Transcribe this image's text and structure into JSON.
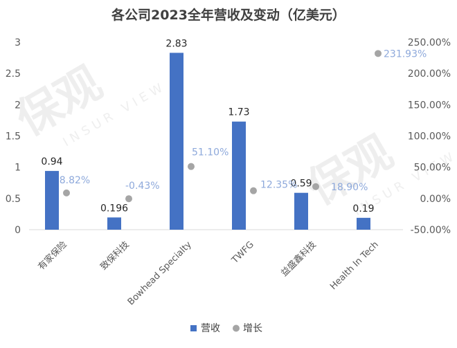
{
  "chart_data": {
    "type": "bar",
    "title": "各公司2023全年营收及变动（亿美元）",
    "categories": [
      "有家保险",
      "致保科技",
      "Bowhead Specialty",
      "TWFG",
      "益盛鑫科技",
      "Health In Tech"
    ],
    "series": [
      {
        "name": "营收",
        "type": "bar",
        "axis": "left",
        "color": "#4472C4",
        "values": [
          0.94,
          0.196,
          2.83,
          1.73,
          0.59,
          0.19
        ],
        "labels": [
          "0.94",
          "0.196",
          "2.83",
          "1.73",
          "0.59",
          "0.19"
        ]
      },
      {
        "name": "增长",
        "type": "scatter",
        "axis": "right",
        "color": "#A5A5A5",
        "values": [
          8.82,
          -0.43,
          51.1,
          12.35,
          18.9,
          231.93
        ],
        "labels": [
          "8.82%",
          "-0.43%",
          "51.10%",
          "12.35%",
          "18.90%",
          "231.93%"
        ],
        "label_color": "#8EA9DB"
      }
    ],
    "y_left": {
      "ylim": [
        0,
        3
      ],
      "ticks": [
        0,
        0.5,
        1,
        1.5,
        2,
        2.5,
        3
      ],
      "tick_labels": [
        "0",
        "0.5",
        "1",
        "1.5",
        "2",
        "2.5",
        "3"
      ]
    },
    "y_right": {
      "ylim": [
        -50,
        250
      ],
      "ticks": [
        -50,
        0,
        50,
        100,
        150,
        200,
        250
      ],
      "tick_labels": [
        "-50.00%",
        "0.00%",
        "50.00%",
        "100.00%",
        "150.00%",
        "200.00%",
        "250.00%"
      ]
    },
    "grid": false,
    "legend": {
      "position": "bottom",
      "items": [
        "营收",
        "增长"
      ]
    }
  },
  "watermark": {
    "brand": "保观",
    "subtitle": "INSUR VIEW"
  }
}
